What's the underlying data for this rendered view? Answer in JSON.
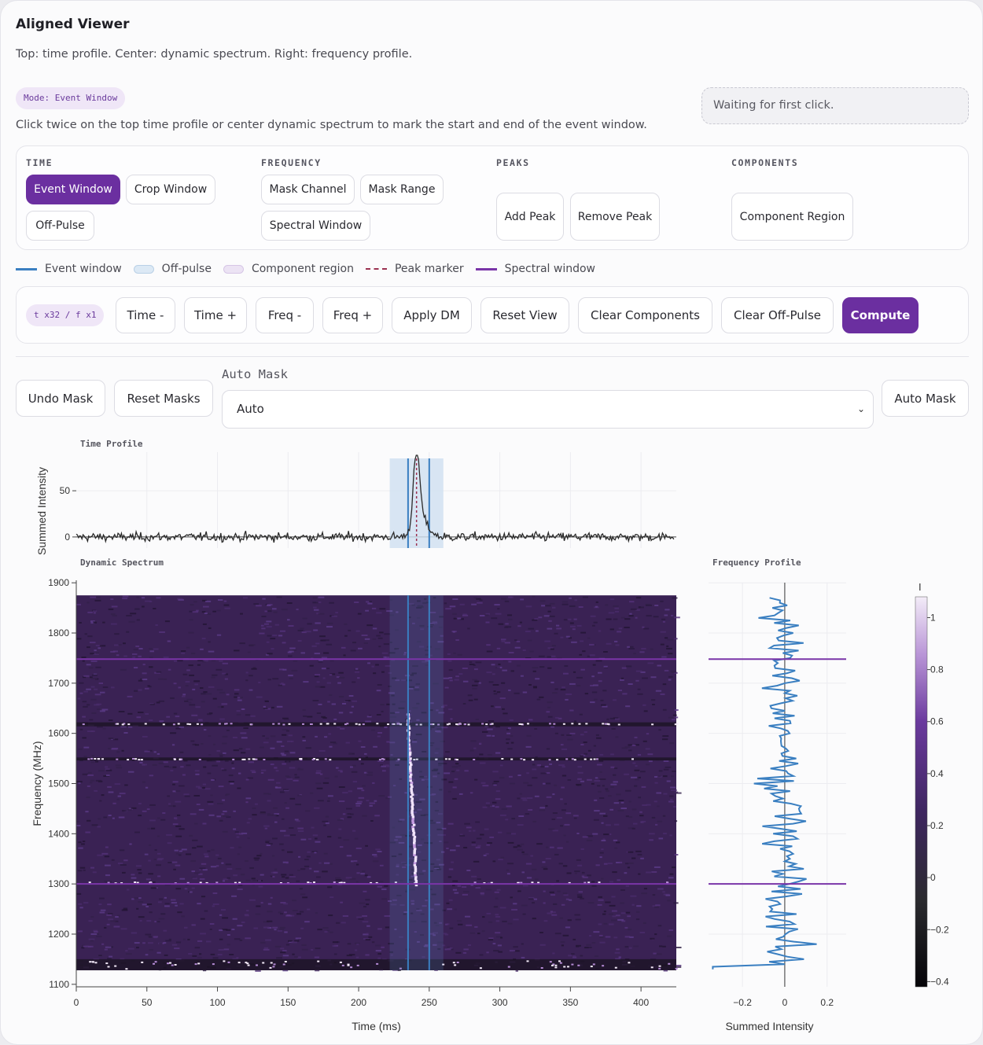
{
  "header": {
    "title": "Aligned Viewer",
    "subtitle": "Top: time profile. Center: dynamic spectrum. Right: frequency profile.",
    "mode_badge": "Mode: Event Window",
    "instructions": "Click twice on the top time profile or center dynamic spectrum to mark the start and end of the event window.",
    "status": "Waiting for first click."
  },
  "tools": {
    "time": {
      "title": "TIME",
      "buttons": [
        "Event Window",
        "Crop Window",
        "Off-Pulse"
      ],
      "active": "Event Window"
    },
    "frequency": {
      "title": "FREQUENCY",
      "buttons": [
        "Mask Channel",
        "Mask Range",
        "Spectral Window"
      ]
    },
    "peaks": {
      "title": "PEAKS",
      "buttons": [
        "Add Peak",
        "Remove Peak"
      ]
    },
    "components": {
      "title": "COMPONENTS",
      "buttons": [
        "Component Region"
      ]
    }
  },
  "legend": {
    "event_window": "Event window",
    "off_pulse": "Off-pulse",
    "component_region": "Component region",
    "peak_marker": "Peak marker",
    "spectral_window": "Spectral window"
  },
  "controls": {
    "resolution_badge": "t x32 / f x1",
    "time_minus": "Time -",
    "time_plus": "Time +",
    "freq_minus": "Freq -",
    "freq_plus": "Freq +",
    "apply_dm": "Apply DM",
    "reset_view": "Reset View",
    "clear_components": "Clear Components",
    "clear_off_pulse": "Clear Off-Pulse",
    "compute": "Compute"
  },
  "masking": {
    "undo_mask": "Undo Mask",
    "reset_masks": "Reset Masks",
    "auto_mask_label": "Auto Mask",
    "auto_mask_selected": "Auto",
    "auto_mask_button": "Auto Mask"
  },
  "colors": {
    "accent": "#6b2fa0",
    "event_window": "#3a7fc1",
    "off_pulse": "#cfe0f0",
    "component_region": "#e6dcf0",
    "peak_marker": "#9a3050",
    "spectral_window": "#7a35a8"
  },
  "chart_data": [
    {
      "type": "line",
      "title": "Time Profile",
      "xlabel": "",
      "ylabel": "Summed Intensity",
      "xlim": [
        0,
        425
      ],
      "ylim": [
        -12,
        85
      ],
      "yticks": [
        0,
        50
      ],
      "series": [
        {
          "peak_time": 241,
          "peak_value": 78,
          "baseline_noise": 4
        }
      ],
      "event_window": [
        235,
        250
      ],
      "off_pulse": [
        222,
        260
      ],
      "peak_marker": 241,
      "grid": true
    },
    {
      "type": "heatmap",
      "title": "Dynamic Spectrum",
      "xlabel": "Time (ms)",
      "ylabel": "Frequency (MHz)",
      "xlim": [
        0,
        425
      ],
      "ylim": [
        1095,
        1905
      ],
      "xticks": [
        0,
        50,
        100,
        150,
        200,
        250,
        300,
        350,
        400
      ],
      "yticks": [
        1100,
        1200,
        1300,
        1400,
        1500,
        1600,
        1700,
        1800,
        1900
      ],
      "data_extent": {
        "freq": [
          1128,
          1875
        ]
      },
      "event_window": [
        235,
        250
      ],
      "spectral_window": [
        1300,
        1748
      ],
      "colorbar": {
        "title": "I",
        "range": [
          -0.42,
          1.08
        ],
        "ticks": [
          -0.4,
          -0.2,
          0,
          0.2,
          0.4,
          0.6,
          0.8,
          1
        ]
      }
    },
    {
      "type": "line",
      "title": "Frequency Profile",
      "xlabel": "Summed Intensity",
      "ylabel": "",
      "xlim": [
        -0.36,
        0.29
      ],
      "xticks": [
        -0.2,
        0,
        0.2
      ],
      "spectral_window": [
        1300,
        1748
      ]
    }
  ]
}
